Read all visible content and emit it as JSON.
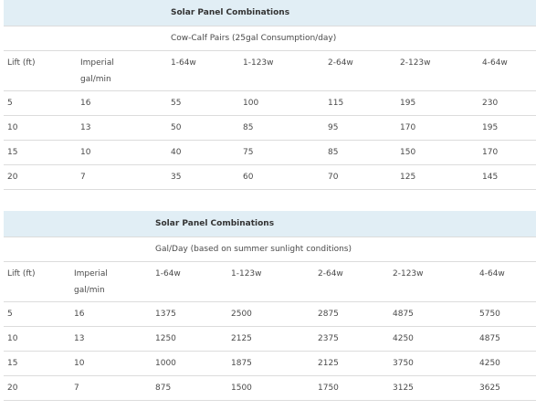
{
  "tables": [
    {
      "title": "Solar Panel Combinations",
      "subtitle": "Cow-Calf Pairs (25gal Consumption/day)",
      "headers": {
        "lift": "Lift (ft)",
        "imperial_1": "Imperial",
        "imperial_2": "gal/min",
        "c1": "1-64w",
        "c2": "1-123w",
        "c3": "2-64w",
        "c4": "2-123w",
        "c5": "4-64w"
      },
      "rows": [
        [
          "5",
          "16",
          "55",
          "100",
          "115",
          "195",
          "230"
        ],
        [
          "10",
          "13",
          "50",
          "85",
          "95",
          "170",
          "195"
        ],
        [
          "15",
          "10",
          "40",
          "75",
          "85",
          "150",
          "170"
        ],
        [
          "20",
          "7",
          "35",
          "60",
          "70",
          "125",
          "145"
        ]
      ]
    },
    {
      "title": "Solar Panel Combinations",
      "subtitle": "Gal/Day (based on summer sunlight conditions)",
      "headers": {
        "lift": "Lift (ft)",
        "imperial_1": "Imperial",
        "imperial_2": "gal/min",
        "c1": "1-64w",
        "c2": "1-123w",
        "c3": "2-64w",
        "c4": "2-123w",
        "c5": "4-64w"
      },
      "rows": [
        [
          "5",
          "16",
          "1375",
          "2500",
          "2875",
          "4875",
          "5750"
        ],
        [
          "10",
          "13",
          "1250",
          "2125",
          "2375",
          "4250",
          "4875"
        ],
        [
          "15",
          "10",
          "1000",
          "1875",
          "2125",
          "3750",
          "4250"
        ],
        [
          "20",
          "7",
          "875",
          "1500",
          "1750",
          "3125",
          "3625"
        ]
      ]
    }
  ]
}
